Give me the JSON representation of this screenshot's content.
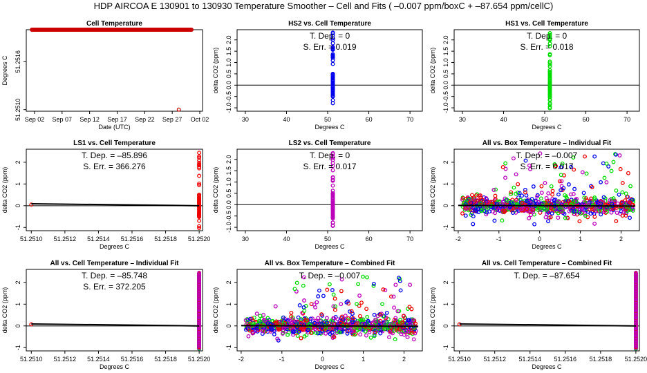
{
  "figure_title": "HDP   AIRCOA E   130901 to 130930   Temperature Smoother – Cell and Fits ( –0.007  ppm/boxC +  –87.654  ppm/cellC)",
  "chart_data": [
    {
      "type": "scatter",
      "title": "Cell Temperature",
      "xlabel": "Date (UTC)",
      "ylabel": "Degrees C",
      "x_tick_labels": [
        "Sep 02",
        "Sep 07",
        "Sep 12",
        "Sep 17",
        "Sep 22",
        "Sep 27",
        "Oct 02"
      ],
      "x_ticks": [
        0,
        5,
        10,
        15,
        20,
        25,
        30
      ],
      "xlim": [
        -1.5,
        30.5
      ],
      "y_tick_labels": [
        "51.2510",
        "51.2516"
      ],
      "y_ticks": [
        51.251,
        51.2516
      ],
      "ylim": [
        51.25098,
        51.252
      ],
      "annotations": [],
      "series": [
        {
          "name": "cell",
          "color": "#cc0000",
          "x_range": [
            -0.5,
            28.5
          ],
          "y": 51.252,
          "count": 190
        },
        {
          "name": "outlier",
          "color": "#cc0000",
          "points": [
            [
              26.2,
              51.251
            ]
          ]
        }
      ]
    },
    {
      "type": "scatter",
      "title": "HS2 vs. Cell Temperature",
      "xlabel": "Degrees C",
      "ylabel": "delta CO2 (ppm)",
      "x_ticks": [
        30,
        40,
        50,
        60,
        70
      ],
      "xlim": [
        28,
        73
      ],
      "y_ticks": [
        -1.0,
        -0.5,
        0.0,
        0.5,
        1.0,
        1.5,
        2.0
      ],
      "y_tick_labels": [
        "-1.0",
        "-0.5",
        "0.0",
        "0.5",
        "1.0",
        "1.5",
        "2.0"
      ],
      "ylim": [
        -1.15,
        2.45
      ],
      "annotations": [
        "T. Dep. =  0",
        "S. Err. =  0.019"
      ],
      "series": [
        {
          "name": "HS2",
          "color": "#0000ee",
          "x": 51.25,
          "y_range": [
            -1.05,
            2.35
          ]
        }
      ]
    },
    {
      "type": "scatter",
      "title": "HS1 vs. Cell Temperature",
      "xlabel": "Degrees C",
      "ylabel": "delta CO2 (ppm)",
      "x_ticks": [
        30,
        40,
        50,
        60,
        70
      ],
      "xlim": [
        28,
        73
      ],
      "y_ticks": [
        -1.0,
        -0.5,
        0.0,
        0.5,
        1.0,
        1.5,
        2.0
      ],
      "y_tick_labels": [
        "-1.0",
        "-0.5",
        "0.0",
        "0.5",
        "1.0",
        "1.5",
        "2.0"
      ],
      "ylim": [
        -1.15,
        2.45
      ],
      "annotations": [
        "T. Dep. =  0",
        "S. Err. =  0.018"
      ],
      "series": [
        {
          "name": "HS1",
          "color": "#00dd00",
          "x": 51.25,
          "y_range": [
            -1.05,
            2.3
          ]
        }
      ]
    },
    {
      "type": "scatter",
      "title": "LS1 vs. Cell Temperature",
      "xlabel": "Degrees C",
      "ylabel": "delta CO2 (ppm)",
      "x_ticks": [
        51.251,
        51.2512,
        51.2514,
        51.2516,
        51.2518,
        51.252
      ],
      "x_tick_labels": [
        "51.2510",
        "51.2512",
        "51.2514",
        "51.2516",
        "51.2518",
        "51.2520"
      ],
      "xlim": [
        51.25097,
        51.25202
      ],
      "y_ticks": [
        -1,
        0,
        1,
        2
      ],
      "y_tick_labels": [
        "-1",
        "0",
        "1",
        "2"
      ],
      "ylim": [
        -1.15,
        2.6
      ],
      "annotations": [
        "T. Dep. =  –85.896",
        "S. Err. =  366.276"
      ],
      "series": [
        {
          "name": "LS1",
          "color": "#ee0000",
          "x": 51.252,
          "y_range": [
            -1.05,
            2.45
          ]
        },
        {
          "name": "outlier",
          "color": "#ee0000",
          "points": [
            [
              51.251,
              0.05
            ]
          ]
        }
      ],
      "fit_line": [
        [
          51.251,
          0.09
        ],
        [
          51.252,
          0.0
        ]
      ]
    },
    {
      "type": "scatter",
      "title": "LS2 vs. Cell Temperature",
      "xlabel": "Degrees C",
      "ylabel": "delta CO2 (ppm)",
      "x_ticks": [
        30,
        40,
        50,
        60,
        70
      ],
      "xlim": [
        28,
        73
      ],
      "y_ticks": [
        -1.0,
        -0.5,
        0.0,
        0.5,
        1.0,
        1.5,
        2.0
      ],
      "y_tick_labels": [
        "-1.0",
        "-0.5",
        "0.0",
        "0.5",
        "1.0",
        "1.5",
        "2.0"
      ],
      "ylim": [
        -1.15,
        2.45
      ],
      "annotations": [
        "T. Dep. =  0",
        "S. Err. =  0.017"
      ],
      "series": [
        {
          "name": "LS2",
          "color": "#bb00bb",
          "x": 51.25,
          "y_range": [
            -1.05,
            2.3
          ]
        }
      ]
    },
    {
      "type": "scatter",
      "title": "All vs. Box Temperature – Individual Fit",
      "xlabel": "Degrees C",
      "ylabel": "delta CO2 (ppm)",
      "x_ticks": [
        -2,
        -1,
        0,
        1,
        2
      ],
      "x_tick_labels": [
        "-2",
        "-1",
        "0",
        "1",
        "2"
      ],
      "xlim": [
        -2.1,
        2.45
      ],
      "y_ticks": [
        -1,
        0,
        1,
        2
      ],
      "y_tick_labels": [
        "-1",
        "0",
        "1",
        "2"
      ],
      "ylim": [
        -1.15,
        2.6
      ],
      "annotations": [
        "T. Dep. =  –0.007",
        "S. Err. =  0.017"
      ],
      "series": [
        {
          "name": "HS2",
          "color": "#0000ee"
        },
        {
          "name": "HS1",
          "color": "#00dd00"
        },
        {
          "name": "LS1",
          "color": "#ee0000"
        },
        {
          "name": "LS2",
          "color": "#bb00bb"
        }
      ],
      "cloud": {
        "x_range": [
          -1.9,
          2.3
        ],
        "center": 0.0,
        "spread": 0.35,
        "seed": 11
      },
      "fit_line": [
        [
          -2.0,
          0.014
        ],
        [
          2.35,
          -0.016
        ]
      ]
    },
    {
      "type": "scatter",
      "title": "All vs. Cell Temperature – Individual Fit",
      "xlabel": "Degrees C",
      "ylabel": "delta CO2 (ppm)",
      "x_ticks": [
        51.251,
        51.2512,
        51.2514,
        51.2516,
        51.2518,
        51.252
      ],
      "x_tick_labels": [
        "51.2510",
        "51.2512",
        "51.2514",
        "51.2516",
        "51.2518",
        "51.2520"
      ],
      "xlim": [
        51.25097,
        51.25202
      ],
      "y_ticks": [
        -1,
        0,
        1,
        2
      ],
      "y_tick_labels": [
        "-1",
        "0",
        "1",
        "2"
      ],
      "ylim": [
        -1.15,
        2.6
      ],
      "annotations": [
        "T. Dep. =  –85.748",
        "S. Err. =  372.205"
      ],
      "series": [
        {
          "name": "HS2",
          "color": "#0000ee",
          "x": 51.252
        },
        {
          "name": "HS1",
          "color": "#00dd00",
          "x": 51.252
        },
        {
          "name": "LS1",
          "color": "#ee0000",
          "x": 51.252
        },
        {
          "name": "LS2",
          "color": "#bb00bb",
          "x": 51.252
        },
        {
          "name": "outlier",
          "color": "#ee0000",
          "points": [
            [
              51.251,
              0.07
            ]
          ]
        }
      ],
      "fit_line": [
        [
          51.251,
          0.09
        ],
        [
          51.252,
          0.0
        ]
      ]
    },
    {
      "type": "scatter",
      "title": "All vs. Box Temperature – Combined Fit",
      "xlabel": "Degrees C",
      "ylabel": "delta CO2 (ppm)",
      "x_ticks": [
        -2,
        -1,
        0,
        1,
        2
      ],
      "x_tick_labels": [
        "-2",
        "-1",
        "0",
        "1",
        "2"
      ],
      "xlim": [
        -2.1,
        2.45
      ],
      "y_ticks": [
        -1,
        0,
        1,
        2
      ],
      "y_tick_labels": [
        "-1",
        "0",
        "1",
        "2"
      ],
      "ylim": [
        -1.15,
        2.6
      ],
      "annotations": [
        "T. Dep. =  –0.007"
      ],
      "series": [
        {
          "name": "HS2",
          "color": "#0000ee"
        },
        {
          "name": "HS1",
          "color": "#00dd00"
        },
        {
          "name": "LS1",
          "color": "#ee0000"
        },
        {
          "name": "LS2",
          "color": "#bb00bb"
        }
      ],
      "cloud": {
        "x_range": [
          -1.9,
          2.3
        ],
        "center": 0.0,
        "spread": 0.35,
        "seed": 29
      },
      "fit_line": [
        [
          -2.0,
          0.014
        ],
        [
          2.35,
          -0.016
        ]
      ]
    },
    {
      "type": "scatter",
      "title": "All vs. Cell Temperature – Combined Fit",
      "xlabel": "Degrees C",
      "ylabel": "delta CO2 (ppm)",
      "x_ticks": [
        51.251,
        51.2512,
        51.2514,
        51.2516,
        51.2518,
        51.252
      ],
      "x_tick_labels": [
        "51.2510",
        "51.2512",
        "51.2514",
        "51.2516",
        "51.2518",
        "51.2520"
      ],
      "xlim": [
        51.25097,
        51.25202
      ],
      "y_ticks": [
        -1,
        0,
        1,
        2
      ],
      "y_tick_labels": [
        "-1",
        "0",
        "1",
        "2"
      ],
      "ylim": [
        -1.15,
        2.6
      ],
      "annotations": [
        "T. Dep. =  –87.654"
      ],
      "series": [
        {
          "name": "HS2",
          "color": "#0000ee",
          "x": 51.252
        },
        {
          "name": "HS1",
          "color": "#00dd00",
          "x": 51.252
        },
        {
          "name": "LS1",
          "color": "#ee0000",
          "x": 51.252
        },
        {
          "name": "LS2",
          "color": "#bb00bb",
          "x": 51.252
        },
        {
          "name": "outlier",
          "color": "#ee0000",
          "points": [
            [
              51.251,
              0.07
            ]
          ]
        }
      ],
      "fit_line": [
        [
          51.251,
          0.09
        ],
        [
          51.252,
          0.0
        ]
      ]
    }
  ]
}
